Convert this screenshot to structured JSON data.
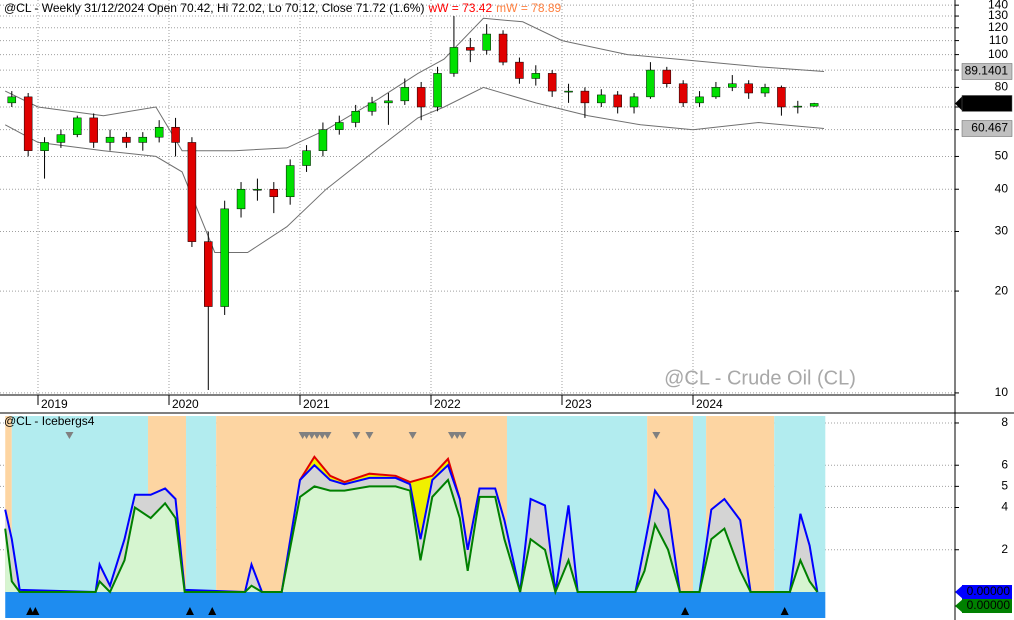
{
  "chart_data": [
    {
      "type": "candlestick",
      "title": "@CL - Weekly 31/12/2024 Open 70.42, Hi 72.02, Lo 70.12, Close 71.72 (1.6%)",
      "annotations": [
        {
          "text": "wW = 73.42",
          "color": "#ff0000"
        },
        {
          "text": "mW = 78.89",
          "color": "#ff8040"
        }
      ],
      "watermark": "@CL - Crude Oil (CL)",
      "x": [
        2018.8,
        2018.925,
        2019.05,
        2019.175,
        2019.3,
        2019.425,
        2019.55,
        2019.675,
        2019.8,
        2019.925,
        2020.05,
        2020.175,
        2020.3,
        2020.425,
        2020.55,
        2020.675,
        2020.8,
        2020.925,
        2021.05,
        2021.175,
        2021.3,
        2021.425,
        2021.55,
        2021.675,
        2021.8,
        2021.925,
        2022.05,
        2022.175,
        2022.3,
        2022.425,
        2022.55,
        2022.675,
        2022.8,
        2022.925,
        2023.05,
        2023.175,
        2023.3,
        2023.425,
        2023.55,
        2023.675,
        2023.8,
        2023.925,
        2024.05,
        2024.175,
        2024.3,
        2024.425,
        2024.55,
        2024.675,
        2024.8,
        2024.925
      ],
      "open": [
        72,
        75,
        52,
        55,
        58,
        65,
        55,
        57,
        55,
        57,
        61,
        55,
        28,
        18,
        35,
        40,
        40,
        38,
        47,
        52,
        60,
        63,
        68,
        72,
        73,
        80,
        70,
        88,
        105,
        103,
        115,
        95,
        85,
        88,
        78,
        78,
        72,
        76,
        70,
        75,
        90,
        82,
        72,
        75,
        80,
        82,
        77,
        80,
        70,
        70.42
      ],
      "high": [
        78,
        77,
        57,
        60,
        66,
        67,
        60,
        59,
        59,
        64,
        65,
        57,
        30,
        37,
        42,
        43,
        42,
        49,
        54,
        63,
        66,
        71,
        75,
        77,
        85,
        83,
        92,
        130,
        112,
        123,
        118,
        98,
        93,
        90,
        82,
        80,
        79,
        78,
        77,
        95,
        92,
        84,
        78,
        83,
        87,
        84,
        82,
        81,
        73,
        72.02
      ],
      "low": [
        70,
        50,
        43,
        53,
        57,
        53,
        52,
        53,
        52,
        55,
        50,
        27,
        10.2,
        17,
        33,
        37,
        34,
        36,
        45,
        50,
        58,
        61,
        66,
        62,
        71,
        64,
        68,
        86,
        95,
        100,
        93,
        82,
        81,
        75,
        72,
        65,
        70,
        67,
        67,
        74,
        80,
        70,
        70,
        74,
        78,
        74,
        75,
        66,
        67,
        70.12
      ],
      "close": [
        75,
        52,
        55,
        58,
        65,
        55,
        57,
        55,
        57,
        61,
        55,
        28,
        18,
        35,
        40,
        40,
        38,
        47,
        52,
        60,
        63,
        68,
        72,
        73,
        80,
        70,
        88,
        105,
        103,
        115,
        95,
        85,
        88,
        78,
        78,
        72,
        76,
        70,
        75,
        90,
        82,
        72,
        75,
        80,
        82,
        77,
        80,
        70,
        70.42,
        71.72
      ],
      "up_color": "#00e000",
      "down_color": "#e00000",
      "overlays": [
        {
          "color": "#707070",
          "x": [
            2018.75,
            2019.0,
            2019.5,
            2019.9,
            2020.1,
            2020.5,
            2020.9,
            2021.2,
            2021.6,
            2021.9,
            2022.1,
            2022.4,
            2022.7,
            2023.0,
            2023.5,
            2024.0,
            2024.5,
            2025.0
          ],
          "values": [
            78,
            70,
            66,
            70,
            52,
            52,
            53,
            60,
            74,
            88,
            97,
            128,
            125,
            110,
            100,
            96,
            92,
            89.1401
          ]
        },
        {
          "color": "#707070",
          "x": [
            2018.75,
            2019.0,
            2019.5,
            2019.9,
            2020.1,
            2020.35,
            2020.6,
            2020.9,
            2021.2,
            2021.6,
            2021.9,
            2022.1,
            2022.4,
            2022.8,
            2023.2,
            2023.6,
            2024.0,
            2024.5,
            2025.0
          ],
          "values": [
            62,
            55,
            52,
            50,
            45,
            26,
            26,
            31,
            40,
            53,
            65,
            70,
            80,
            72,
            66,
            62,
            60,
            63,
            60.467
          ]
        }
      ],
      "xlim": [
        2018.71,
        2026.0
      ],
      "xticks": [
        2019,
        2020,
        2021,
        2022,
        2023,
        2024
      ],
      "ylim": [
        9.86,
        145
      ],
      "yticks": [
        10,
        20,
        30,
        40,
        50,
        60,
        70,
        80,
        90,
        100,
        110,
        120,
        130,
        140
      ],
      "log_scale": true,
      "grid": true
    },
    {
      "type": "area",
      "title": "@CL - Icebergs4",
      "regions": [
        {
          "start": 2018.75,
          "end": 2018.8,
          "color": "#fdd5a2"
        },
        {
          "start": 2018.8,
          "end": 2019.84,
          "color": "#b2ecef"
        },
        {
          "start": 2019.84,
          "end": 2020.13,
          "color": "#fdd5a2"
        },
        {
          "start": 2020.13,
          "end": 2020.36,
          "color": "#b2ecef"
        },
        {
          "start": 2020.36,
          "end": 2022.58,
          "color": "#fdd5a2"
        },
        {
          "start": 2022.58,
          "end": 2023.65,
          "color": "#b2ecef"
        },
        {
          "start": 2023.65,
          "end": 2024.0,
          "color": "#fdd5a2"
        },
        {
          "start": 2024.0,
          "end": 2024.1,
          "color": "#b2ecef"
        },
        {
          "start": 2024.1,
          "end": 2024.62,
          "color": "#fdd5a2"
        },
        {
          "start": 2024.62,
          "end": 2025.01,
          "color": "#b2ecef"
        }
      ],
      "series": [
        {
          "color": "#e00000",
          "fill": "#f0f000",
          "x": [
            2021.0,
            2021.11,
            2021.23,
            2021.34,
            2021.53,
            2021.73,
            2021.84,
            2022.01,
            2022.13,
            2022.22
          ],
          "values": [
            5.3,
            6.4,
            5.5,
            5.2,
            5.6,
            5.5,
            5.2,
            5.5,
            6.3,
            4.4
          ]
        },
        {
          "color": "#0000ff",
          "fill": "#d4d4d4",
          "last_label": "0.00000",
          "x": [
            2018.75,
            2018.8,
            2018.86,
            2019.44,
            2019.47,
            2019.55,
            2019.66,
            2019.74,
            2019.86,
            2019.97,
            2020.05,
            2020.12,
            2020.58,
            2020.63,
            2020.71,
            2020.86,
            2021.0,
            2021.11,
            2021.23,
            2021.34,
            2021.53,
            2021.73,
            2021.84,
            2021.92,
            2022.01,
            2022.13,
            2022.22,
            2022.28,
            2022.37,
            2022.49,
            2022.56,
            2022.68,
            2022.76,
            2022.87,
            2022.95,
            2023.05,
            2023.12,
            2023.56,
            2023.63,
            2023.71,
            2023.81,
            2023.9,
            2024.05,
            2024.14,
            2024.24,
            2024.36,
            2024.44,
            2024.74,
            2024.82,
            2024.89,
            2024.95
          ],
          "values": [
            3.9,
            2.5,
            0.1,
            0,
            1.3,
            0.3,
            2.5,
            4.6,
            4.6,
            4.9,
            4.4,
            0.1,
            0,
            1.3,
            0,
            0,
            5.3,
            6.0,
            5.3,
            5.1,
            5.4,
            5.4,
            5.1,
            2.5,
            5.3,
            6.0,
            4.4,
            2.0,
            4.9,
            4.9,
            3.4,
            0,
            4.4,
            4.1,
            0,
            4.1,
            0,
            0,
            2.2,
            4.8,
            3.9,
            0,
            0,
            3.9,
            4.4,
            3.4,
            0,
            0,
            3.7,
            2.2,
            0
          ]
        },
        {
          "color": "#008000",
          "fill": "#d6f5d0",
          "last_label": "0.00000",
          "x": [
            2018.75,
            2018.8,
            2018.86,
            2019.44,
            2019.47,
            2019.55,
            2019.66,
            2019.74,
            2019.86,
            2019.97,
            2020.05,
            2020.12,
            2020.58,
            2020.63,
            2020.71,
            2020.86,
            2021.0,
            2021.11,
            2021.23,
            2021.34,
            2021.53,
            2021.73,
            2021.84,
            2021.92,
            2022.01,
            2022.13,
            2022.22,
            2022.28,
            2022.37,
            2022.49,
            2022.56,
            2022.68,
            2022.76,
            2022.87,
            2022.95,
            2023.05,
            2023.12,
            2023.56,
            2023.63,
            2023.71,
            2023.81,
            2023.9,
            2024.05,
            2024.14,
            2024.24,
            2024.36,
            2024.44,
            2024.74,
            2024.82,
            2024.89,
            2024.95
          ],
          "values": [
            3.0,
            0.5,
            0,
            0,
            0.5,
            0,
            1.5,
            4.0,
            3.5,
            4.2,
            3.5,
            0,
            0,
            0.3,
            0,
            0,
            4.5,
            5.0,
            4.8,
            4.8,
            5.0,
            5.0,
            4.8,
            1.5,
            4.5,
            5.3,
            3.5,
            1.0,
            4.5,
            4.5,
            2.5,
            0,
            2.5,
            2.0,
            0,
            1.5,
            0,
            0,
            1.0,
            3.2,
            2.0,
            0,
            0,
            2.5,
            3.0,
            1.0,
            0,
            0,
            1.5,
            0.5,
            0
          ]
        }
      ],
      "down_markers": {
        "color": "#808080",
        "x": [
          2019.24,
          2021.02,
          2021.05,
          2021.09,
          2021.13,
          2021.17,
          2021.21,
          2021.43,
          2021.53,
          2021.86,
          2022.16,
          2022.2,
          2022.24,
          2023.72
        ]
      },
      "up_markers": {
        "color": "#000000",
        "x": [
          2018.94,
          2018.98,
          2020.16,
          2020.33,
          2023.94,
          2024.7
        ]
      },
      "xlim": [
        2018.71,
        2026.0
      ],
      "ylim": [
        -1.23,
        8.33
      ],
      "yticks": [
        2,
        4,
        5,
        6,
        8
      ],
      "grid": true
    }
  ]
}
